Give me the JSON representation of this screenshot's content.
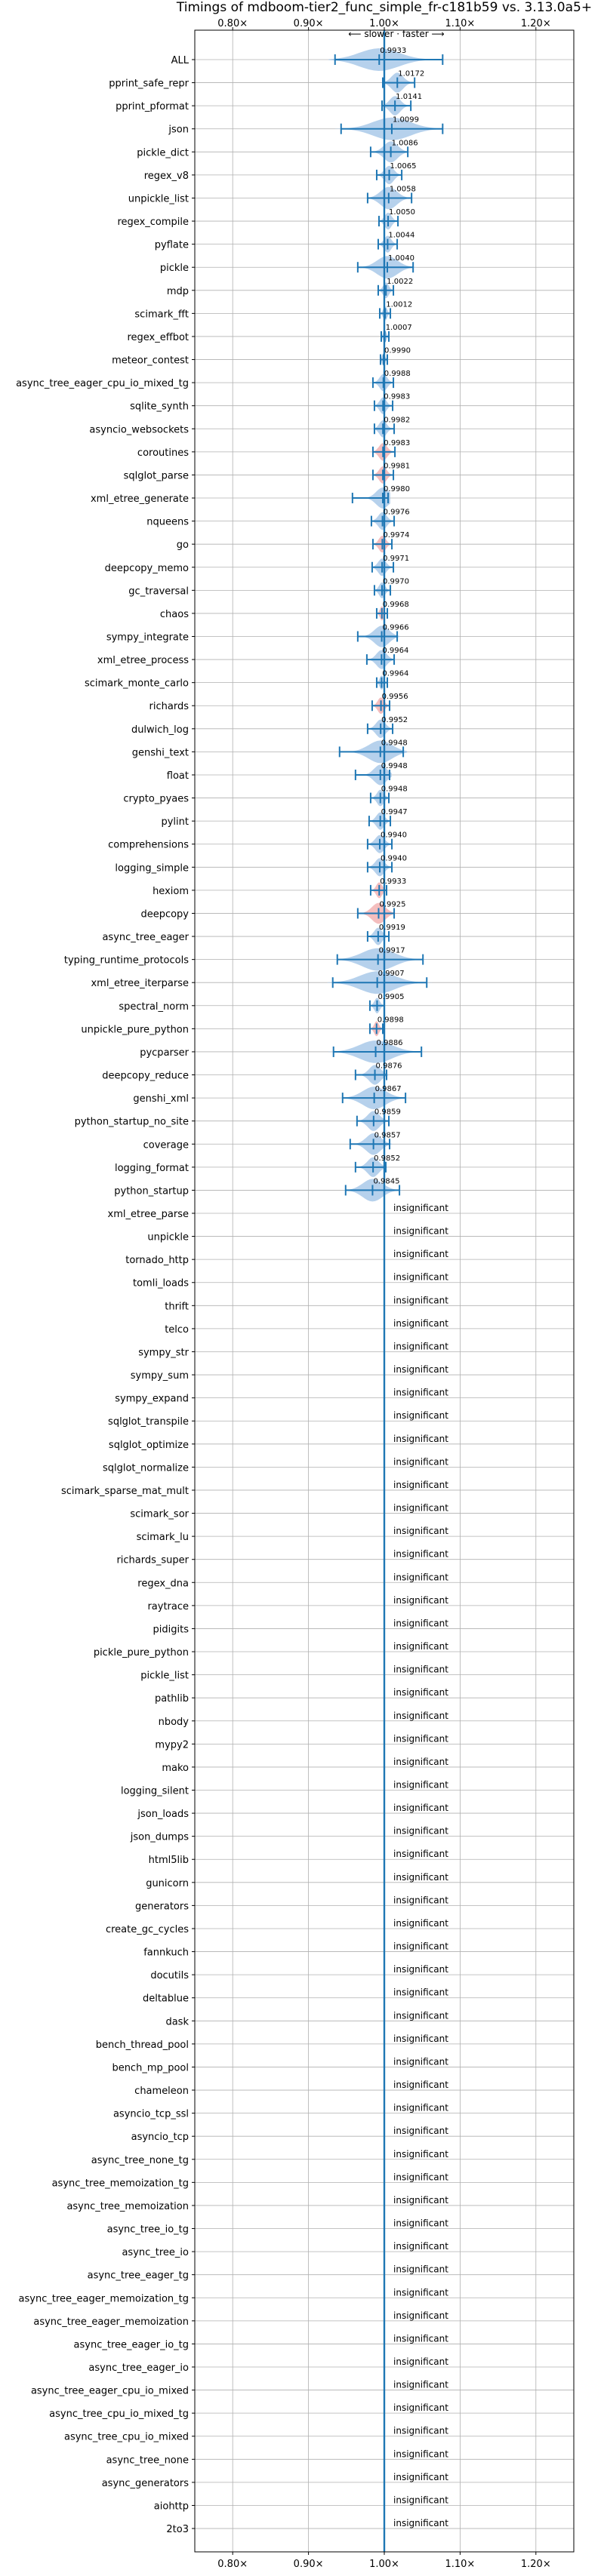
{
  "chart_data": {
    "type": "violin",
    "title": "Timings of mdboom-tier2_func_simple_fr-c181b59 vs. 3.13.0a5+",
    "subtitle": "⟵ slower · faster ⟶",
    "x_axis": {
      "range": [
        0.75,
        1.25
      ],
      "ticks": [
        0.8,
        0.9,
        1.0,
        1.1,
        1.2
      ],
      "tick_labels": [
        "0.80×",
        "0.90×",
        "1.00×",
        "1.10×",
        "1.20×"
      ],
      "reference": 1.0,
      "grid": true,
      "tick_labels_top_and_bottom": true
    },
    "colors": {
      "violin_faster": "#9ec2e6",
      "violin_slower": "#f0a8a8",
      "errorbar": "#1f77b4",
      "reference_line": "#1f77b4",
      "grid": "#b0b0b0"
    },
    "insignificant_label": "insignificant",
    "significant": [
      {
        "name": "ALL",
        "value": 0.9933,
        "label": "0.9933",
        "lo": 0.935,
        "hi": 1.077
      },
      {
        "name": "pprint_safe_repr",
        "value": 1.0172,
        "label": "1.0172",
        "lo": 0.998,
        "hi": 1.04
      },
      {
        "name": "pprint_pformat",
        "value": 1.0141,
        "label": "1.0141",
        "lo": 0.997,
        "hi": 1.035
      },
      {
        "name": "json",
        "value": 1.0099,
        "label": "1.0099",
        "lo": 0.943,
        "hi": 1.077
      },
      {
        "name": "pickle_dict",
        "value": 1.0086,
        "label": "1.0086",
        "lo": 0.982,
        "hi": 1.031
      },
      {
        "name": "regex_v8",
        "value": 1.0065,
        "label": "1.0065",
        "lo": 0.99,
        "hi": 1.023
      },
      {
        "name": "unpickle_list",
        "value": 1.0058,
        "label": "1.0058",
        "lo": 0.978,
        "hi": 1.036
      },
      {
        "name": "regex_compile",
        "value": 1.005,
        "label": "1.0050",
        "lo": 0.993,
        "hi": 1.018
      },
      {
        "name": "pyflate",
        "value": 1.0044,
        "label": "1.0044",
        "lo": 0.992,
        "hi": 1.017
      },
      {
        "name": "pickle",
        "value": 1.004,
        "label": "1.0040",
        "lo": 0.965,
        "hi": 1.038
      },
      {
        "name": "mdp",
        "value": 1.0022,
        "label": "1.0022",
        "lo": 0.992,
        "hi": 1.012
      },
      {
        "name": "scimark_fft",
        "value": 1.0012,
        "label": "1.0012",
        "lo": 0.994,
        "hi": 1.008
      },
      {
        "name": "regex_effbot",
        "value": 1.0007,
        "label": "1.0007",
        "lo": 0.996,
        "hi": 1.006
      },
      {
        "name": "meteor_contest",
        "value": 0.999,
        "label": "0.9990",
        "lo": 0.995,
        "hi": 1.004
      },
      {
        "name": "async_tree_eager_cpu_io_mixed_tg",
        "value": 0.9988,
        "label": "0.9988",
        "lo": 0.985,
        "hi": 1.012
      },
      {
        "name": "sqlite_synth",
        "value": 0.9983,
        "label": "0.9983",
        "lo": 0.987,
        "hi": 1.011
      },
      {
        "name": "asyncio_websockets",
        "value": 0.9982,
        "label": "0.9982",
        "lo": 0.987,
        "hi": 1.013
      },
      {
        "name": "coroutines",
        "value": 0.9983,
        "label": "0.9983",
        "lo": 0.985,
        "hi": 1.014
      },
      {
        "name": "sqlglot_parse",
        "value": 0.9981,
        "label": "0.9981",
        "lo": 0.985,
        "hi": 1.012
      },
      {
        "name": "xml_etree_generate",
        "value": 0.998,
        "label": "0.9980",
        "lo": 0.958,
        "hi": 1.005
      },
      {
        "name": "nqueens",
        "value": 0.9976,
        "label": "0.9976",
        "lo": 0.983,
        "hi": 1.013
      },
      {
        "name": "go",
        "value": 0.9974,
        "label": "0.9974",
        "lo": 0.985,
        "hi": 1.01
      },
      {
        "name": "deepcopy_memo",
        "value": 0.9971,
        "label": "0.9971",
        "lo": 0.984,
        "hi": 1.012
      },
      {
        "name": "gc_traversal",
        "value": 0.997,
        "label": "0.9970",
        "lo": 0.987,
        "hi": 1.008
      },
      {
        "name": "chaos",
        "value": 0.9968,
        "label": "0.9968",
        "lo": 0.99,
        "hi": 1.004
      },
      {
        "name": "sympy_integrate",
        "value": 0.9966,
        "label": "0.9966",
        "lo": 0.965,
        "hi": 1.017
      },
      {
        "name": "xml_etree_process",
        "value": 0.9964,
        "label": "0.9964",
        "lo": 0.977,
        "hi": 1.013
      },
      {
        "name": "scimark_monte_carlo",
        "value": 0.9964,
        "label": "0.9964",
        "lo": 0.99,
        "hi": 1.004
      },
      {
        "name": "richards",
        "value": 0.9956,
        "label": "0.9956",
        "lo": 0.984,
        "hi": 1.007
      },
      {
        "name": "dulwich_log",
        "value": 0.9952,
        "label": "0.9952",
        "lo": 0.978,
        "hi": 1.011
      },
      {
        "name": "genshi_text",
        "value": 0.9948,
        "label": "0.9948",
        "lo": 0.941,
        "hi": 1.025
      },
      {
        "name": "float",
        "value": 0.9948,
        "label": "0.9948",
        "lo": 0.962,
        "hi": 1.007
      },
      {
        "name": "crypto_pyaes",
        "value": 0.9948,
        "label": "0.9948",
        "lo": 0.982,
        "hi": 1.006
      },
      {
        "name": "pylint",
        "value": 0.9947,
        "label": "0.9947",
        "lo": 0.98,
        "hi": 1.008
      },
      {
        "name": "comprehensions",
        "value": 0.994,
        "label": "0.9940",
        "lo": 0.978,
        "hi": 1.01
      },
      {
        "name": "logging_simple",
        "value": 0.994,
        "label": "0.9940",
        "lo": 0.978,
        "hi": 1.01
      },
      {
        "name": "hexiom",
        "value": 0.9933,
        "label": "0.9933",
        "lo": 0.982,
        "hi": 1.003
      },
      {
        "name": "deepcopy",
        "value": 0.9925,
        "label": "0.9925",
        "lo": 0.965,
        "hi": 1.013
      },
      {
        "name": "async_tree_eager",
        "value": 0.9919,
        "label": "0.9919",
        "lo": 0.978,
        "hi": 1.006
      },
      {
        "name": "typing_runtime_protocols",
        "value": 0.9917,
        "label": "0.9917",
        "lo": 0.938,
        "hi": 1.051
      },
      {
        "name": "xml_etree_iterparse",
        "value": 0.9907,
        "label": "0.9907",
        "lo": 0.932,
        "hi": 1.056
      },
      {
        "name": "spectral_norm",
        "value": 0.9905,
        "label": "0.9905",
        "lo": 0.981,
        "hi": 1.0
      },
      {
        "name": "unpickle_pure_python",
        "value": 0.9898,
        "label": "0.9898",
        "lo": 0.981,
        "hi": 0.998
      },
      {
        "name": "pycparser",
        "value": 0.9886,
        "label": "0.9886",
        "lo": 0.933,
        "hi": 1.049
      },
      {
        "name": "deepcopy_reduce",
        "value": 0.9876,
        "label": "0.9876",
        "lo": 0.962,
        "hi": 1.003
      },
      {
        "name": "genshi_xml",
        "value": 0.9867,
        "label": "0.9867",
        "lo": 0.945,
        "hi": 1.028
      },
      {
        "name": "python_startup_no_site",
        "value": 0.9859,
        "label": "0.9859",
        "lo": 0.964,
        "hi": 1.006
      },
      {
        "name": "coverage",
        "value": 0.9857,
        "label": "0.9857",
        "lo": 0.955,
        "hi": 1.007
      },
      {
        "name": "logging_format",
        "value": 0.9852,
        "label": "0.9852",
        "lo": 0.962,
        "hi": 1.002
      },
      {
        "name": "python_startup",
        "value": 0.9845,
        "label": "0.9845",
        "lo": 0.949,
        "hi": 1.02
      }
    ],
    "slower_highlighted": [
      "coroutines",
      "sqlglot_parse",
      "go",
      "chaos",
      "richards",
      "hexiom",
      "deepcopy",
      "unpickle_pure_python"
    ],
    "insignificant": [
      "xml_etree_parse",
      "unpickle",
      "tornado_http",
      "tomli_loads",
      "thrift",
      "telco",
      "sympy_str",
      "sympy_sum",
      "sympy_expand",
      "sqlglot_transpile",
      "sqlglot_optimize",
      "sqlglot_normalize",
      "scimark_sparse_mat_mult",
      "scimark_sor",
      "scimark_lu",
      "richards_super",
      "regex_dna",
      "raytrace",
      "pidigits",
      "pickle_pure_python",
      "pickle_list",
      "pathlib",
      "nbody",
      "mypy2",
      "mako",
      "logging_silent",
      "json_loads",
      "json_dumps",
      "html5lib",
      "gunicorn",
      "generators",
      "create_gc_cycles",
      "fannkuch",
      "docutils",
      "deltablue",
      "dask",
      "bench_thread_pool",
      "bench_mp_pool",
      "chameleon",
      "asyncio_tcp_ssl",
      "asyncio_tcp",
      "async_tree_none_tg",
      "async_tree_memoization_tg",
      "async_tree_memoization",
      "async_tree_io_tg",
      "async_tree_io",
      "async_tree_eager_tg",
      "async_tree_eager_memoization_tg",
      "async_tree_eager_memoization",
      "async_tree_eager_io_tg",
      "async_tree_eager_io",
      "async_tree_eager_cpu_io_mixed",
      "async_tree_cpu_io_mixed_tg",
      "async_tree_cpu_io_mixed",
      "async_tree_none",
      "async_generators",
      "aiohttp",
      "2to3"
    ]
  }
}
